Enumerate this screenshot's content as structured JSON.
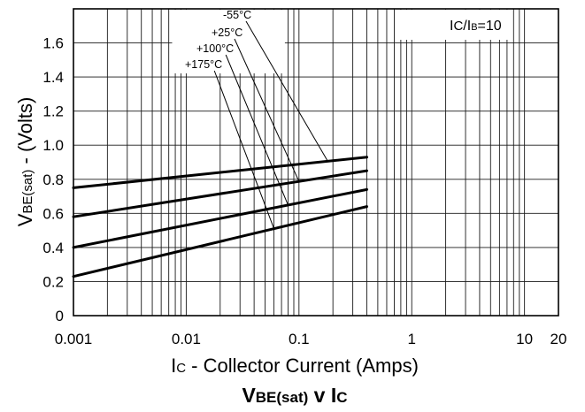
{
  "chart_data": {
    "type": "line",
    "title": {
      "main": "V",
      "sub": "BE(sat)",
      "connector": " v I",
      "sub2": "C"
    },
    "xlabel": {
      "main": "I",
      "sub": "C",
      "rest": " - Collector Current (Amps)"
    },
    "ylabel": {
      "main": "V",
      "sub": "BE(sat)",
      "rest": " - (Volts)"
    },
    "annotation": {
      "i1": "I",
      "s1": "C",
      "slash": "/I",
      "s2": "B",
      "rest": "=10"
    },
    "x_scale": "log",
    "xlim": [
      0.001,
      20
    ],
    "ylim": [
      0,
      1.8
    ],
    "x_ticks": [
      {
        "value": 0.001,
        "label": "0.001"
      },
      {
        "value": 0.01,
        "label": "0.01"
      },
      {
        "value": 0.1,
        "label": "0.1"
      },
      {
        "value": 1,
        "label": "1"
      },
      {
        "value": 10,
        "label": "10"
      },
      {
        "value": 20,
        "label": "20"
      }
    ],
    "y_ticks": [
      {
        "value": 0,
        "label": "0"
      },
      {
        "value": 0.2,
        "label": "0.2"
      },
      {
        "value": 0.4,
        "label": "0.4"
      },
      {
        "value": 0.6,
        "label": "0.6"
      },
      {
        "value": 0.8,
        "label": "0.8"
      },
      {
        "value": 1.0,
        "label": "1.0"
      },
      {
        "value": 1.2,
        "label": "1.2"
      },
      {
        "value": 1.4,
        "label": "1.4"
      },
      {
        "value": 1.6,
        "label": "1.6"
      }
    ],
    "grid": true,
    "series": [
      {
        "name": "-55°C",
        "x": [
          0.001,
          0.4
        ],
        "y": [
          0.75,
          0.93
        ]
      },
      {
        "name": "+25°C",
        "x": [
          0.001,
          0.4
        ],
        "y": [
          0.58,
          0.85
        ]
      },
      {
        "name": "+100°C",
        "x": [
          0.001,
          0.4
        ],
        "y": [
          0.4,
          0.74
        ]
      },
      {
        "name": "+175°C",
        "x": [
          0.001,
          0.4
        ],
        "y": [
          0.23,
          0.64
        ]
      }
    ],
    "label_positions": [
      {
        "series": "-55°C",
        "point_x": 0.18
      },
      {
        "series": "+25°C",
        "point_x": 0.1
      },
      {
        "series": "+100°C",
        "point_x": 0.08
      },
      {
        "series": "+175°C",
        "point_x": 0.06
      }
    ]
  }
}
